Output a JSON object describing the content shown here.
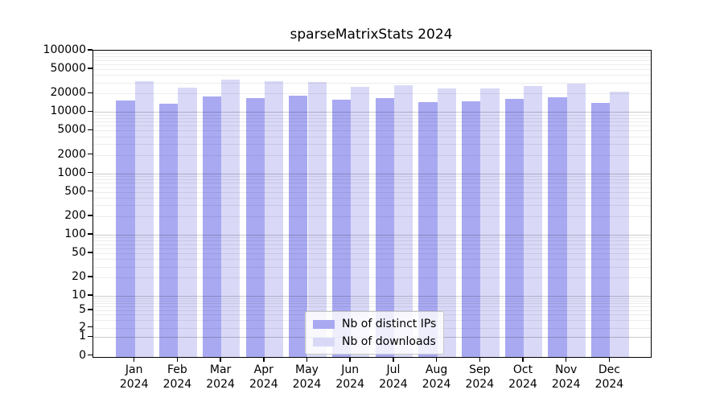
{
  "chart_data": {
    "type": "bar",
    "title": "sparseMatrixStats 2024",
    "categories": [
      "Jan",
      "Feb",
      "Mar",
      "Apr",
      "May",
      "Jun",
      "Jul",
      "Aug",
      "Sep",
      "Oct",
      "Nov",
      "Dec"
    ],
    "category_year": "2024",
    "series": [
      {
        "name": "Nb of distinct IPs",
        "color": "#a9a9f2",
        "values": [
          15500,
          13700,
          18100,
          16700,
          18400,
          15700,
          16700,
          14500,
          14900,
          16300,
          17300,
          13900
        ]
      },
      {
        "name": "Nb of downloads",
        "color": "#d9d9f7",
        "values": [
          32000,
          24800,
          34000,
          31500,
          31200,
          26100,
          27700,
          24100,
          24500,
          26800,
          28600,
          21700
        ]
      }
    ],
    "yscale": "symlog",
    "ylim": [
      0,
      100000
    ],
    "yticks": [
      100000,
      50000,
      20000,
      10000,
      5000,
      2000,
      1000,
      500,
      200,
      100,
      50,
      20,
      10,
      5,
      2,
      1,
      0
    ],
    "grid": "major and minor horizontal, light gray",
    "legend_position": "lower center"
  },
  "colors": {
    "background": "#ffffff",
    "spine": "#000000",
    "grid_decade": "rgba(0,0,0,0.20)",
    "grid_minor": "rgba(0,0,0,0.075)",
    "bar_distinct_ips": "#a9a9f2",
    "bar_downloads": "#d9d9f7",
    "legend_border": "#c8c8c8"
  }
}
